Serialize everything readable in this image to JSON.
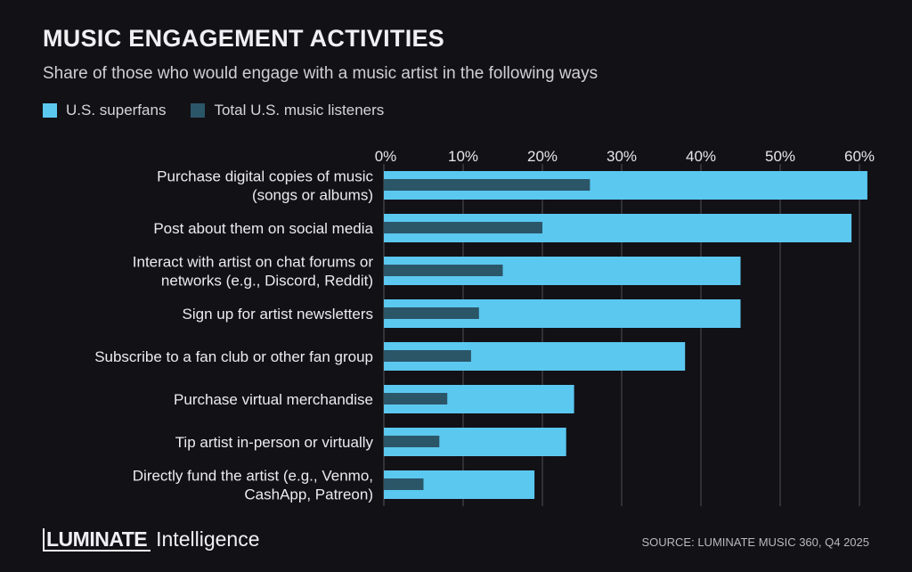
{
  "chart_data": {
    "type": "bar",
    "orientation": "horizontal",
    "title": "MUSIC ENGAGEMENT ACTIVITIES",
    "subtitle": "Share of those who would engage with a music artist in the following ways",
    "categories": [
      [
        "Purchase digital copies of music",
        "(songs or albums)"
      ],
      [
        "Post about them on social media"
      ],
      [
        "Interact with artist on chat forums or",
        "networks (e.g., Discord, Reddit)"
      ],
      [
        "Sign up for artist newsletters"
      ],
      [
        "Subscribe to a fan club or other fan group"
      ],
      [
        "Purchase virtual merchandise"
      ],
      [
        "Tip artist in-person or virtually"
      ],
      [
        "Directly fund the artist (e.g., Venmo,",
        "CashApp, Patreon)"
      ]
    ],
    "series": [
      {
        "name": "U.S. superfans",
        "color": "#5bc8f0",
        "values": [
          61,
          59,
          45,
          45,
          38,
          24,
          23,
          19
        ]
      },
      {
        "name": "Total U.S. music listeners",
        "color": "#2b5668",
        "values": [
          26,
          20,
          15,
          12,
          11,
          8,
          7,
          5
        ]
      }
    ],
    "xlim": [
      0,
      61
    ],
    "xticks": [
      "0%",
      "10%",
      "20%",
      "30%",
      "40%",
      "50%",
      "60%"
    ],
    "xtick_values": [
      0,
      10,
      20,
      30,
      40,
      50,
      60
    ],
    "xaxis_position": "top",
    "grid": true,
    "legend_position": "top-left"
  },
  "footer": {
    "logo_bold": "LUMINATE",
    "logo_light": "Intelligence",
    "source": "SOURCE: LUMINATE MUSIC 360, Q4 2025"
  },
  "colors": {
    "background": "#121116",
    "gridline": "#3a3a40"
  }
}
